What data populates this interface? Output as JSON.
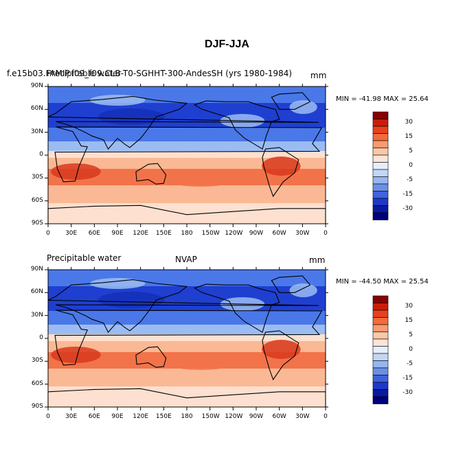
{
  "figure": {
    "title": "DJF-JJA"
  },
  "panels": [
    {
      "left_label": "f.e15b03.FAMIP.f09_f09.CLB-T0-SGHHT-300-AndesSH (yrs 1980-1984)",
      "center_label": "Precipitable water",
      "units": "mm",
      "minmax": "MIN = -41.98 MAX =  25.64",
      "lat_labels": [
        "90N",
        "60N",
        "30N",
        "0",
        "30S",
        "60S",
        "90S"
      ],
      "lon_labels": [
        "0",
        "30E",
        "60E",
        "90E",
        "120E",
        "150E",
        "180",
        "150W",
        "120W",
        "90W",
        "60W",
        "30W",
        "0"
      ]
    },
    {
      "left_label": "Precipitable water",
      "center_label": "NVAP",
      "units": "mm",
      "minmax": "MIN = -44.50 MAX =  25.54",
      "lat_labels": [
        "90N",
        "60N",
        "30N",
        "0",
        "30S",
        "60S",
        "90S"
      ],
      "lon_labels": [
        "0",
        "30E",
        "60E",
        "90E",
        "120E",
        "150E",
        "180",
        "150W",
        "120W",
        "90W",
        "60W",
        "30W",
        "0"
      ]
    }
  ],
  "colorbar": {
    "labels": [
      "30",
      "15",
      "5",
      "0",
      "-5",
      "-15",
      "-30"
    ],
    "colors": [
      "#8b0000",
      "#c81e0a",
      "#e8411c",
      "#f56a3c",
      "#fb9a6e",
      "#fcc7a8",
      "#fee4d6",
      "#e5eefa",
      "#c2d6f6",
      "#97b6f0",
      "#6a8fe6",
      "#3f63dc",
      "#1f38c8",
      "#0a1aa0",
      "#00007a"
    ]
  },
  "palette": {
    "deep_blue": "#1f3fd0",
    "mid_blue": "#4a78e8",
    "light_blue": "#9bbcf2",
    "pale_blue": "#d6e4fb",
    "pale_red": "#fde0cf",
    "light_red": "#fbb894",
    "mid_red": "#f2734a",
    "deep_red": "#d8381c"
  }
}
